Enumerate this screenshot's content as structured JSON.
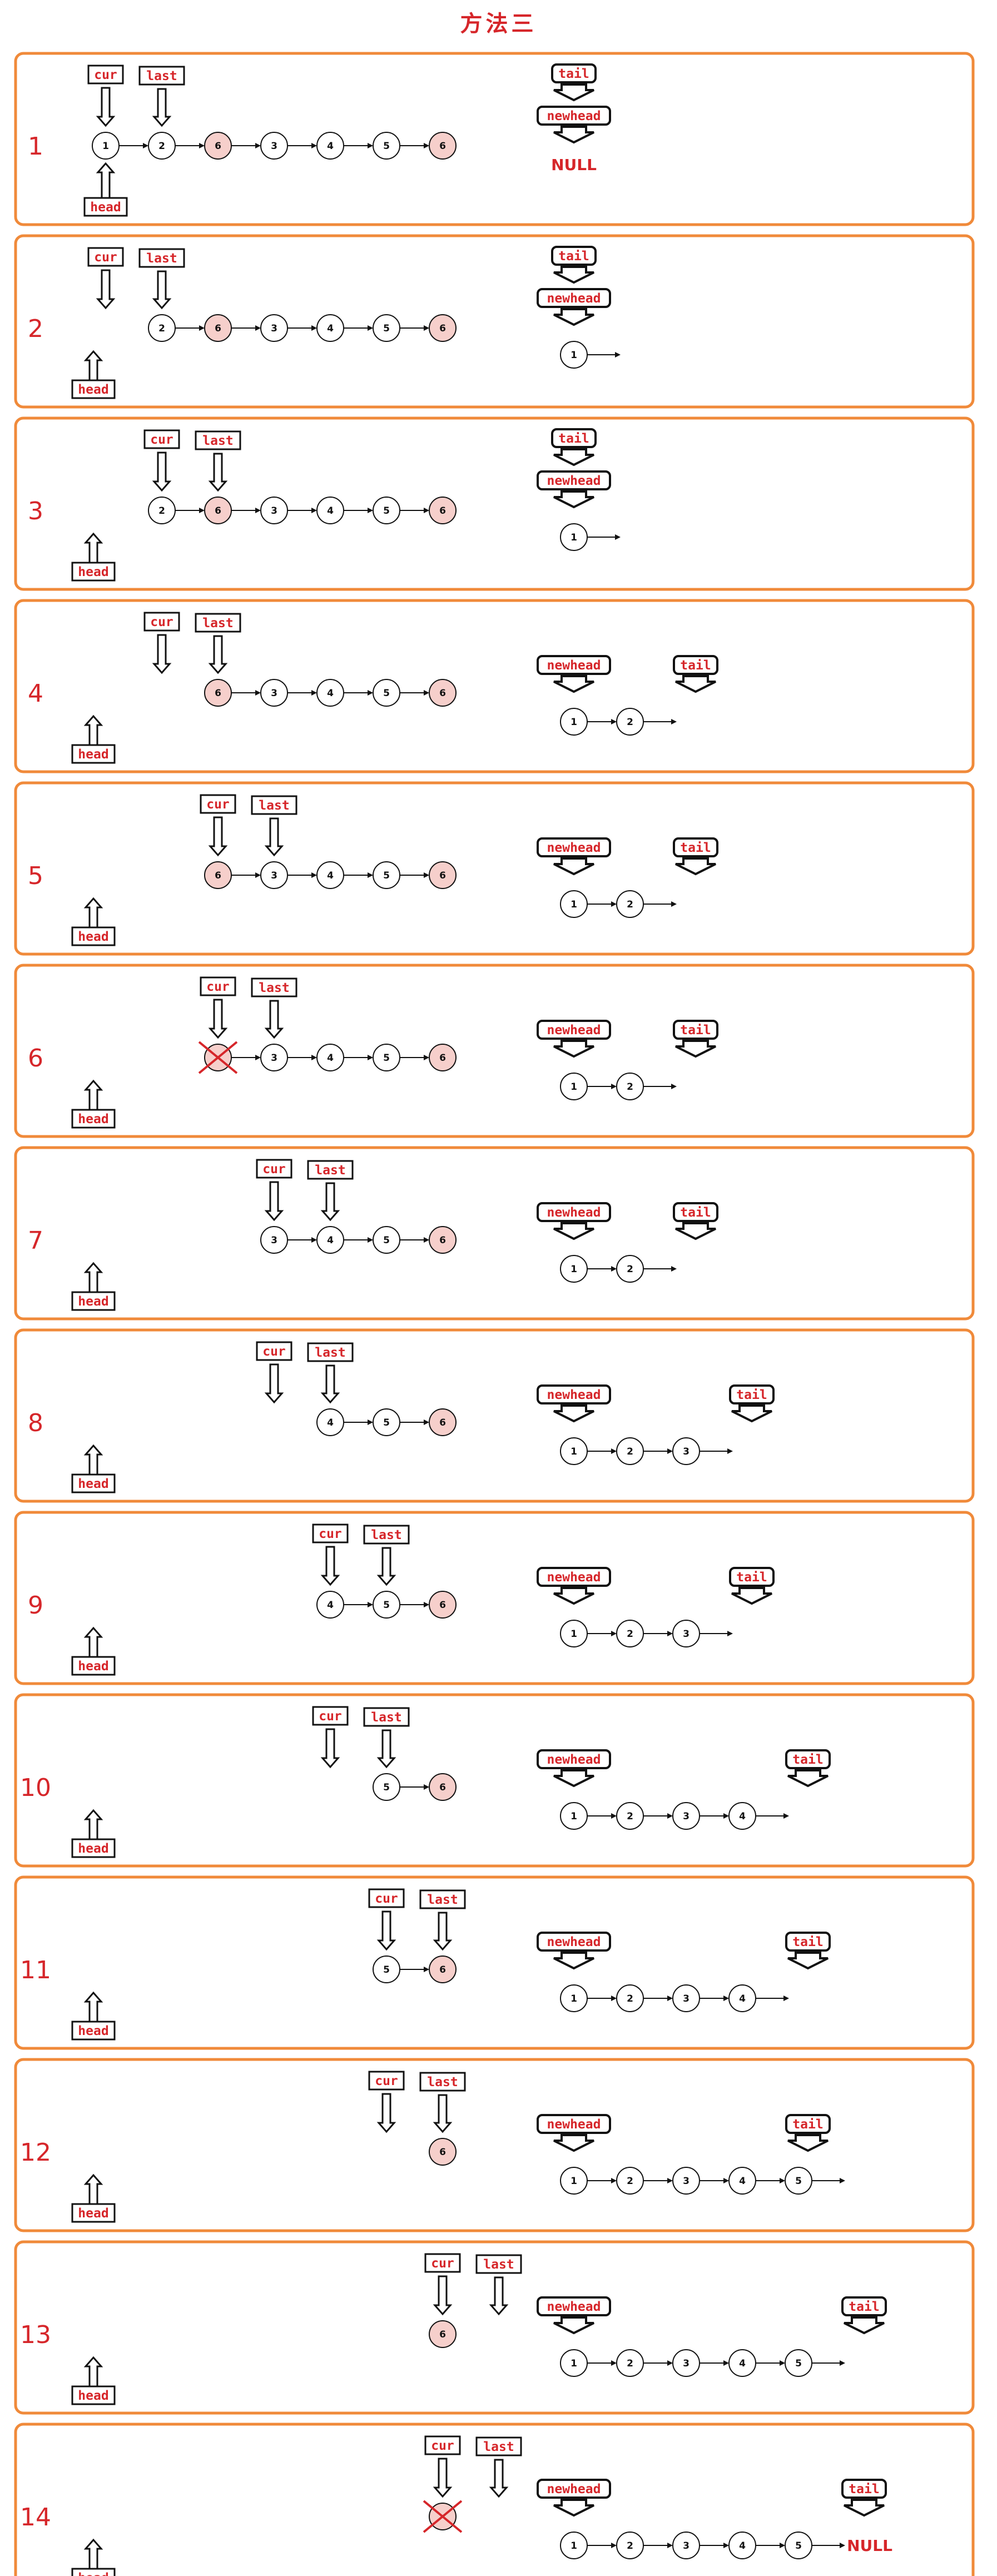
{
  "title": "方法三",
  "null_text": "NULL",
  "colors": {
    "frame": "#f08a3a",
    "accent": "#d6262a",
    "removed_fill": "#f6cfcb"
  },
  "pointer_labels": {
    "cur": "cur",
    "last": "last",
    "head": "head",
    "tail": "tail",
    "newhead": "newhead"
  },
  "steps": [
    {
      "num": "1",
      "old": [
        {
          "v": "1"
        },
        {
          "v": "2"
        },
        {
          "v": "6",
          "hl": true
        },
        {
          "v": "3"
        },
        {
          "v": "4"
        },
        {
          "v": "5"
        },
        {
          "v": "6",
          "hl": true
        }
      ],
      "old_start": 0,
      "cur": 0,
      "last": 1,
      "head_at_node": true,
      "new": [],
      "tail_at": -1,
      "null_new": true,
      "new_open": false
    },
    {
      "num": "2",
      "old": [
        {
          "v": "2"
        },
        {
          "v": "6",
          "hl": true
        },
        {
          "v": "3"
        },
        {
          "v": "4"
        },
        {
          "v": "5"
        },
        {
          "v": "6",
          "hl": true
        }
      ],
      "old_start": 1,
      "cur": 0,
      "last": 1,
      "head_at_node": false,
      "new": [
        "1"
      ],
      "tail_at": 0,
      "new_open": true
    },
    {
      "num": "3",
      "old": [
        {
          "v": "2"
        },
        {
          "v": "6",
          "hl": true
        },
        {
          "v": "3"
        },
        {
          "v": "4"
        },
        {
          "v": "5"
        },
        {
          "v": "6",
          "hl": true
        }
      ],
      "old_start": 1,
      "cur": 1,
      "last": 2,
      "head_at_node": false,
      "new": [
        "1"
      ],
      "tail_at": 0,
      "new_open": true
    },
    {
      "num": "4",
      "old": [
        {
          "v": "6",
          "hl": true
        },
        {
          "v": "3"
        },
        {
          "v": "4"
        },
        {
          "v": "5"
        },
        {
          "v": "6",
          "hl": true
        }
      ],
      "old_start": 2,
      "cur": 1,
      "last": 2,
      "head_at_node": false,
      "new": [
        "1",
        "2"
      ],
      "tail_at": 1,
      "new_open": true
    },
    {
      "num": "5",
      "old": [
        {
          "v": "6",
          "hl": true
        },
        {
          "v": "3"
        },
        {
          "v": "4"
        },
        {
          "v": "5"
        },
        {
          "v": "6",
          "hl": true
        }
      ],
      "old_start": 2,
      "cur": 2,
      "last": 3,
      "head_at_node": false,
      "new": [
        "1",
        "2"
      ],
      "tail_at": 1,
      "new_open": true
    },
    {
      "num": "6",
      "old": [
        {
          "v": "6",
          "x": true
        },
        {
          "v": "3"
        },
        {
          "v": "4"
        },
        {
          "v": "5"
        },
        {
          "v": "6",
          "hl": true
        }
      ],
      "old_start": 2,
      "cur": 2,
      "last": 3,
      "head_at_node": false,
      "new": [
        "1",
        "2"
      ],
      "tail_at": 1,
      "new_open": true
    },
    {
      "num": "7",
      "old": [
        {
          "v": "3"
        },
        {
          "v": "4"
        },
        {
          "v": "5"
        },
        {
          "v": "6",
          "hl": true
        }
      ],
      "old_start": 3,
      "cur": 3,
      "last": 4,
      "head_at_node": false,
      "new": [
        "1",
        "2"
      ],
      "tail_at": 1,
      "new_open": true
    },
    {
      "num": "8",
      "old": [
        {
          "v": "4"
        },
        {
          "v": "5"
        },
        {
          "v": "6",
          "hl": true
        }
      ],
      "old_start": 4,
      "cur": 3,
      "last": 4,
      "head_at_node": false,
      "new": [
        "1",
        "2",
        "3"
      ],
      "tail_at": 2,
      "new_open": true
    },
    {
      "num": "9",
      "old": [
        {
          "v": "4"
        },
        {
          "v": "5"
        },
        {
          "v": "6",
          "hl": true
        }
      ],
      "old_start": 4,
      "cur": 4,
      "last": 5,
      "head_at_node": false,
      "new": [
        "1",
        "2",
        "3"
      ],
      "tail_at": 2,
      "new_open": true
    },
    {
      "num": "10",
      "old": [
        {
          "v": "5"
        },
        {
          "v": "6",
          "hl": true
        }
      ],
      "old_start": 5,
      "cur": 4,
      "last": 5,
      "head_at_node": false,
      "new": [
        "1",
        "2",
        "3",
        "4"
      ],
      "tail_at": 3,
      "new_open": true
    },
    {
      "num": "11",
      "old": [
        {
          "v": "5"
        },
        {
          "v": "6",
          "hl": true
        }
      ],
      "old_start": 5,
      "cur": 5,
      "last": 6,
      "head_at_node": false,
      "new": [
        "1",
        "2",
        "3",
        "4"
      ],
      "tail_at": 3,
      "new_open": true
    },
    {
      "num": "12",
      "old": [
        {
          "v": "6",
          "hl": true
        }
      ],
      "old_start": 6,
      "cur": 5,
      "last": 6,
      "head_at_node": false,
      "new": [
        "1",
        "2",
        "3",
        "4",
        "5"
      ],
      "tail_at": 3,
      "new_open": true
    },
    {
      "num": "13",
      "old": [
        {
          "v": "6",
          "hl": true
        }
      ],
      "old_start": 6,
      "cur": 6,
      "last": 7,
      "head_at_node": false,
      "new": [
        "1",
        "2",
        "3",
        "4",
        "5"
      ],
      "tail_at": 4,
      "new_open": true
    },
    {
      "num": "14",
      "old": [
        {
          "v": "6",
          "x": true
        }
      ],
      "old_start": 6,
      "cur": 6,
      "last": 7,
      "head_at_node": false,
      "new": [
        "1",
        "2",
        "3",
        "4",
        "5"
      ],
      "tail_at": 4,
      "null_new": true,
      "new_open": false
    }
  ]
}
